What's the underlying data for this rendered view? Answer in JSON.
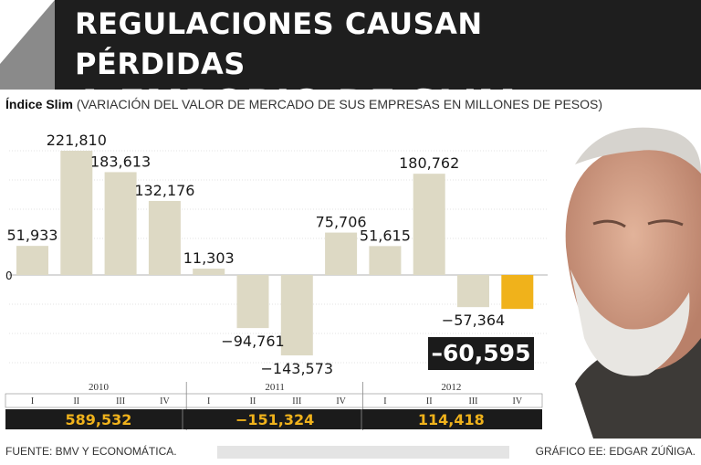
{
  "header": {
    "title_line1": "REGULACIONES CAUSAN PÉRDIDAS",
    "title_line2": "A EMPORIO DE SLIM"
  },
  "subtitle": {
    "label": "Índice Slim",
    "note": "(VARIACIÓN DEL VALOR DE MERCADO DE SUS EMPRESAS EN MILLONES DE PESOS)"
  },
  "chart_data": {
    "type": "bar",
    "title": "",
    "xlabel": "",
    "ylabel": "",
    "categories": [
      "2010 I",
      "2010 II",
      "2010 III",
      "2010 IV",
      "2011 I",
      "2011 II",
      "2011 III",
      "2011 IV",
      "2012 I",
      "2012 II",
      "2012 III",
      "2012 IV"
    ],
    "values": [
      51933,
      221810,
      183613,
      132176,
      11303,
      -94761,
      -143573,
      75706,
      51615,
      180762,
      -57364,
      -60595
    ],
    "value_labels": [
      "51,933",
      "221,810",
      "183,613",
      "132,176",
      "11,303",
      "−94,761",
      "−143,573",
      "75,706",
      "51,615",
      "180,762",
      "−57,364",
      "−60,595"
    ],
    "zero_label": "0",
    "years": [
      "2010",
      "2011",
      "2012"
    ],
    "quarters": [
      "I",
      "II",
      "III",
      "IV",
      "I",
      "II",
      "III",
      "IV",
      "I",
      "II",
      "III",
      "IV"
    ],
    "annual_totals": [
      "589,532",
      "−151,324",
      "114,418"
    ],
    "highlight_index": 11,
    "colors": {
      "bar": "#ddd9c4",
      "highlight": "#f0b21b",
      "grid": "#c8c8c8",
      "band": "#1b1b1b"
    }
  },
  "callout": {
    "value": "–60,595"
  },
  "footer": {
    "source": "FUENTE: BMV Y ECONOMÁTICA.",
    "credit": "GRÁFICO EE: EDGAR ZÚÑIGA."
  },
  "image": {
    "subject": "portrait-photo"
  }
}
